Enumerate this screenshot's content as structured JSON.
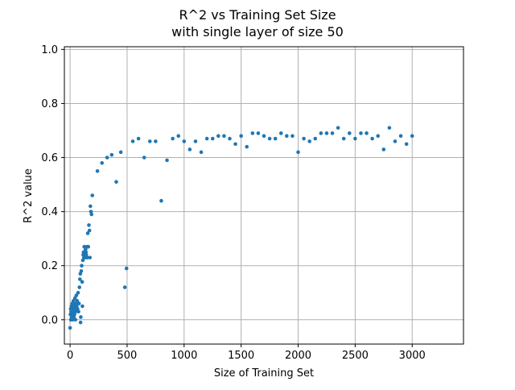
{
  "chart_data": {
    "type": "scatter",
    "title": "R^2 vs Training Set Size",
    "subtitle": "with single layer of size 50",
    "xlabel": "Size of Training Set",
    "ylabel": "R^2 value",
    "xlim": [
      -50,
      3450
    ],
    "ylim": [
      -0.09,
      1.01
    ],
    "xticks": [
      0,
      500,
      1000,
      1500,
      2000,
      2500,
      3000
    ],
    "yticks": [
      0.0,
      0.2,
      0.4,
      0.6,
      0.8,
      1.0
    ],
    "xtick_labels": [
      "0",
      "500",
      "1000",
      "1500",
      "2000",
      "2500",
      "3000"
    ],
    "ytick_labels": [
      "0.0",
      "0.2",
      "0.4",
      "0.6",
      "0.8",
      "1.0"
    ],
    "grid": true,
    "marker_color": "#1f77b4",
    "series": [
      {
        "points": [
          {
            "x": 0,
            "y": -0.03
          },
          {
            "x": 3,
            "y": 0.02
          },
          {
            "x": 5,
            "y": 0.04
          },
          {
            "x": 7,
            "y": 0.0
          },
          {
            "x": 9,
            "y": 0.03
          },
          {
            "x": 11,
            "y": 0.05
          },
          {
            "x": 13,
            "y": 0.01
          },
          {
            "x": 15,
            "y": 0.03
          },
          {
            "x": 17,
            "y": 0.02
          },
          {
            "x": 19,
            "y": 0.06
          },
          {
            "x": 21,
            "y": 0.04
          },
          {
            "x": 23,
            "y": 0.0
          },
          {
            "x": 25,
            "y": 0.02
          },
          {
            "x": 27,
            "y": 0.05
          },
          {
            "x": 29,
            "y": 0.07
          },
          {
            "x": 31,
            "y": 0.03
          },
          {
            "x": 33,
            "y": 0.01
          },
          {
            "x": 35,
            "y": 0.04
          },
          {
            "x": 37,
            "y": 0.06
          },
          {
            "x": 39,
            "y": 0.02
          },
          {
            "x": 41,
            "y": 0.05
          },
          {
            "x": 43,
            "y": 0.08
          },
          {
            "x": 45,
            "y": 0.04
          },
          {
            "x": 47,
            "y": 0.0
          },
          {
            "x": 49,
            "y": 0.03
          },
          {
            "x": 52,
            "y": 0.06
          },
          {
            "x": 55,
            "y": 0.09
          },
          {
            "x": 58,
            "y": 0.05
          },
          {
            "x": 62,
            "y": 0.07
          },
          {
            "x": 66,
            "y": 0.04
          },
          {
            "x": 70,
            "y": 0.1
          },
          {
            "x": 74,
            "y": 0.03
          },
          {
            "x": 78,
            "y": 0.06
          },
          {
            "x": 82,
            "y": 0.12
          },
          {
            "x": 86,
            "y": 0.15
          },
          {
            "x": 90,
            "y": 0.17
          },
          {
            "x": 92,
            "y": -0.01
          },
          {
            "x": 94,
            "y": 0.01
          },
          {
            "x": 98,
            "y": 0.18
          },
          {
            "x": 102,
            "y": 0.2
          },
          {
            "x": 106,
            "y": 0.14
          },
          {
            "x": 108,
            "y": 0.05
          },
          {
            "x": 112,
            "y": 0.22
          },
          {
            "x": 115,
            "y": 0.24
          },
          {
            "x": 118,
            "y": 0.25
          },
          {
            "x": 121,
            "y": 0.23
          },
          {
            "x": 124,
            "y": 0.27
          },
          {
            "x": 127,
            "y": 0.25
          },
          {
            "x": 130,
            "y": 0.24
          },
          {
            "x": 133,
            "y": 0.23
          },
          {
            "x": 136,
            "y": 0.26
          },
          {
            "x": 139,
            "y": 0.25
          },
          {
            "x": 142,
            "y": 0.24
          },
          {
            "x": 146,
            "y": 0.27
          },
          {
            "x": 150,
            "y": 0.23
          },
          {
            "x": 155,
            "y": 0.32
          },
          {
            "x": 160,
            "y": 0.27
          },
          {
            "x": 165,
            "y": 0.35
          },
          {
            "x": 170,
            "y": 0.33
          },
          {
            "x": 174,
            "y": 0.23
          },
          {
            "x": 178,
            "y": 0.42
          },
          {
            "x": 183,
            "y": 0.4
          },
          {
            "x": 188,
            "y": 0.39
          },
          {
            "x": 195,
            "y": 0.46
          },
          {
            "x": 240,
            "y": 0.55
          },
          {
            "x": 280,
            "y": 0.58
          },
          {
            "x": 325,
            "y": 0.6
          },
          {
            "x": 365,
            "y": 0.61
          },
          {
            "x": 405,
            "y": 0.51
          },
          {
            "x": 445,
            "y": 0.62
          },
          {
            "x": 480,
            "y": 0.12
          },
          {
            "x": 495,
            "y": 0.19
          },
          {
            "x": 550,
            "y": 0.66
          },
          {
            "x": 600,
            "y": 0.67
          },
          {
            "x": 650,
            "y": 0.6
          },
          {
            "x": 700,
            "y": 0.66
          },
          {
            "x": 750,
            "y": 0.66
          },
          {
            "x": 800,
            "y": 0.44
          },
          {
            "x": 850,
            "y": 0.59
          },
          {
            "x": 900,
            "y": 0.67
          },
          {
            "x": 950,
            "y": 0.68
          },
          {
            "x": 1000,
            "y": 0.66
          },
          {
            "x": 1050,
            "y": 0.63
          },
          {
            "x": 1100,
            "y": 0.66
          },
          {
            "x": 1150,
            "y": 0.62
          },
          {
            "x": 1200,
            "y": 0.67
          },
          {
            "x": 1250,
            "y": 0.67
          },
          {
            "x": 1300,
            "y": 0.68
          },
          {
            "x": 1350,
            "y": 0.68
          },
          {
            "x": 1400,
            "y": 0.67
          },
          {
            "x": 1450,
            "y": 0.65
          },
          {
            "x": 1500,
            "y": 0.68
          },
          {
            "x": 1550,
            "y": 0.64
          },
          {
            "x": 1600,
            "y": 0.69
          },
          {
            "x": 1650,
            "y": 0.69
          },
          {
            "x": 1700,
            "y": 0.68
          },
          {
            "x": 1750,
            "y": 0.67
          },
          {
            "x": 1800,
            "y": 0.67
          },
          {
            "x": 1850,
            "y": 0.69
          },
          {
            "x": 1900,
            "y": 0.68
          },
          {
            "x": 1950,
            "y": 0.68
          },
          {
            "x": 2000,
            "y": 0.62
          },
          {
            "x": 2050,
            "y": 0.67
          },
          {
            "x": 2100,
            "y": 0.66
          },
          {
            "x": 2150,
            "y": 0.67
          },
          {
            "x": 2200,
            "y": 0.69
          },
          {
            "x": 2250,
            "y": 0.69
          },
          {
            "x": 2300,
            "y": 0.69
          },
          {
            "x": 2350,
            "y": 0.71
          },
          {
            "x": 2400,
            "y": 0.67
          },
          {
            "x": 2450,
            "y": 0.69
          },
          {
            "x": 2500,
            "y": 0.67
          },
          {
            "x": 2550,
            "y": 0.69
          },
          {
            "x": 2600,
            "y": 0.69
          },
          {
            "x": 2650,
            "y": 0.67
          },
          {
            "x": 2700,
            "y": 0.68
          },
          {
            "x": 2750,
            "y": 0.63
          },
          {
            "x": 2800,
            "y": 0.71
          },
          {
            "x": 2850,
            "y": 0.66
          },
          {
            "x": 2900,
            "y": 0.68
          },
          {
            "x": 2950,
            "y": 0.65
          },
          {
            "x": 3000,
            "y": 0.68
          }
        ]
      }
    ]
  }
}
